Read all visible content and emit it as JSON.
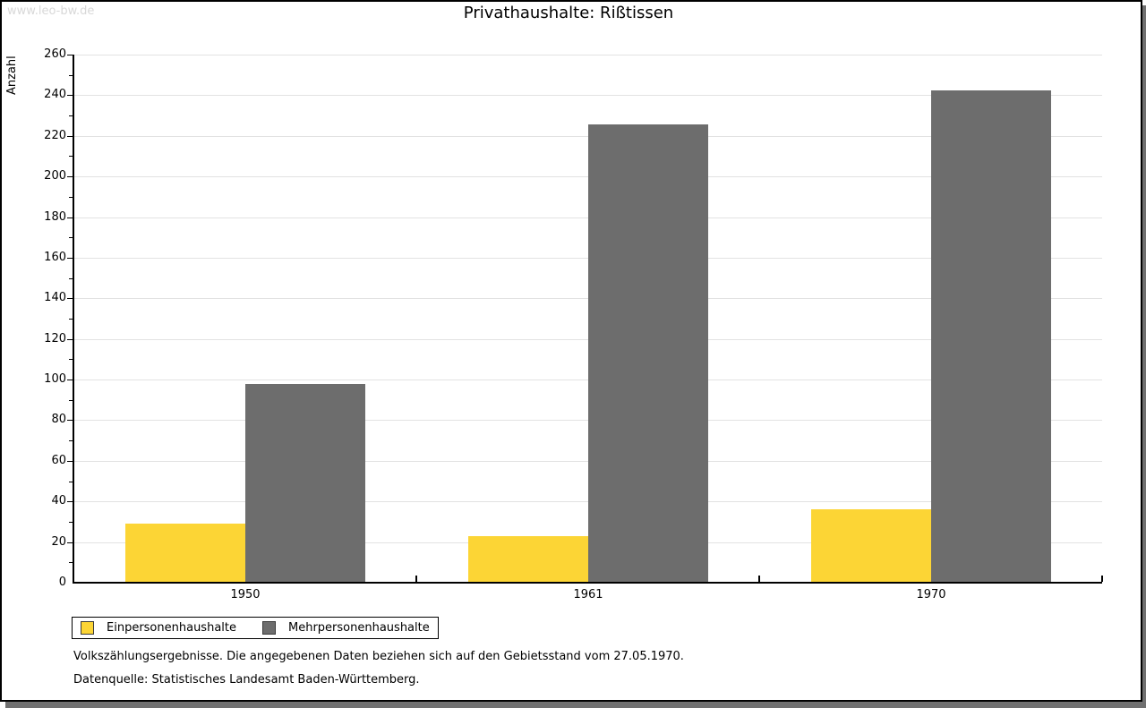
{
  "watermark": "www.leo-bw.de",
  "chart_data": {
    "type": "bar",
    "title": "Privathaushalte: Rißtissen",
    "xlabel": "",
    "ylabel": "Anzahl",
    "categories": [
      "1950",
      "1961",
      "1970"
    ],
    "series": [
      {
        "name": "Einpersonenhaushalte",
        "color": "#FCD535",
        "values": [
          29,
          23,
          36
        ]
      },
      {
        "name": "Mehrpersonenhaushalte",
        "color": "#6D6D6D",
        "values": [
          98,
          226,
          243
        ]
      }
    ],
    "ylim": [
      0,
      260
    ],
    "ytick_major": 20,
    "ytick_minor": 10,
    "grid": true,
    "grid_color": "#e2e2e2",
    "legend_position": "bottom-left"
  },
  "footnotes": {
    "line1": "Volkszählungsergebnisse. Die angegebenen Daten beziehen sich auf den Gebietsstand vom 27.05.1970.",
    "line2": "Datenquelle: Statistisches Landesamt Baden-Württemberg."
  }
}
